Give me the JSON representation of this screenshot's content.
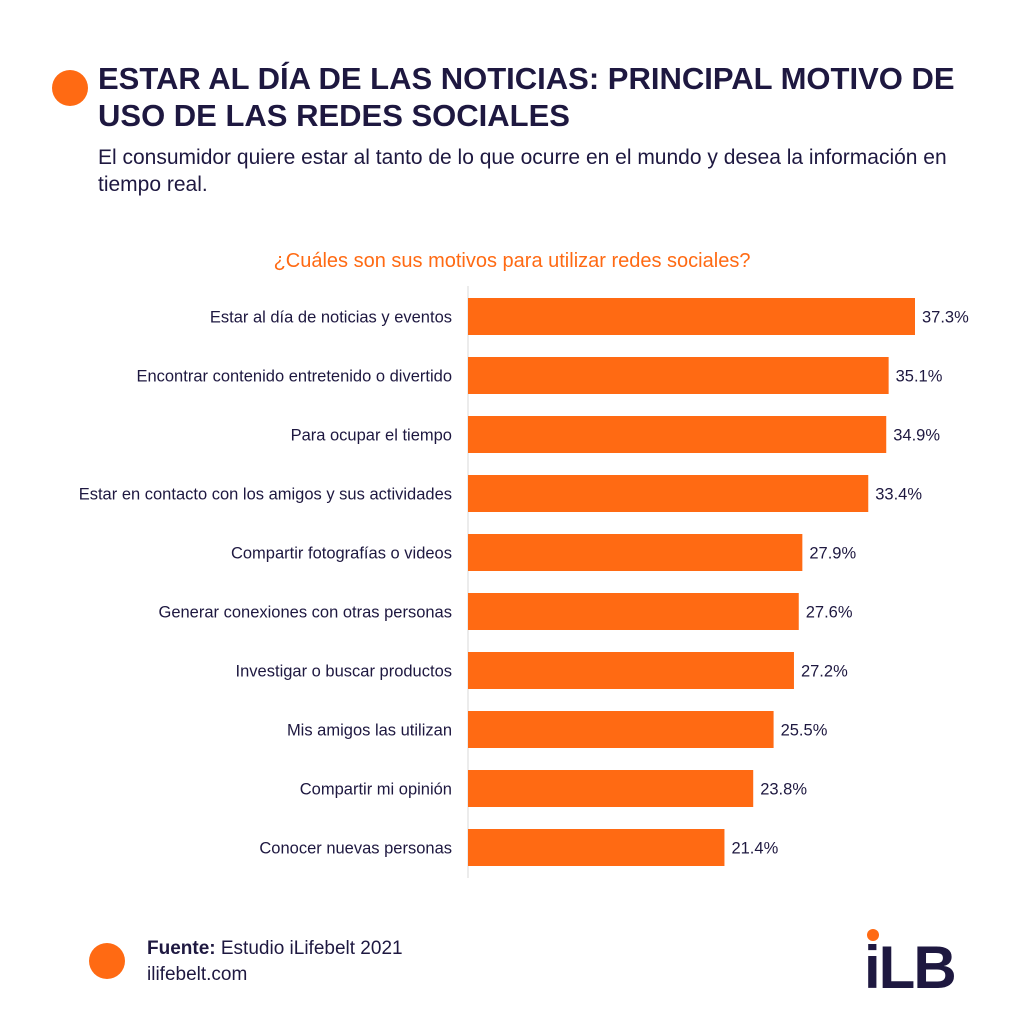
{
  "header": {
    "title": "ESTAR AL DÍA DE LAS NOTICIAS: PRINCIPAL MOTIVO DE USO DE LAS REDES SOCIALES",
    "subtitle": "El consumidor quiere estar al tanto de lo que ocurre en el mundo y desea la información en tiempo real."
  },
  "chart_data": {
    "type": "bar",
    "orientation": "horizontal",
    "title": "¿Cuáles son sus motivos para utilizar redes sociales?",
    "categories": [
      "Estar al día de noticias y eventos",
      "Encontrar contenido entretenido o divertido",
      "Para ocupar el tiempo",
      "Estar en contacto con los amigos y sus actividades",
      "Compartir fotografías o videos",
      "Generar conexiones con otras personas",
      "Investigar o buscar productos",
      "Mis amigos las utilizan",
      "Compartir mi opinión",
      "Conocer nuevas personas"
    ],
    "values": [
      37.3,
      35.1,
      34.9,
      33.4,
      27.9,
      27.6,
      27.2,
      25.5,
      23.8,
      21.4
    ],
    "value_labels": [
      "37.3%",
      "35.1%",
      "34.9%",
      "33.4%",
      "27.9%",
      "27.6%",
      "27.2%",
      "25.5%",
      "23.8%",
      "21.4%"
    ],
    "unit": "%",
    "xlim": [
      0,
      37.3
    ],
    "grid": false,
    "bar_color": "#ff6a13"
  },
  "footer": {
    "source_label": "Fuente:",
    "source_text": " Estudio iLifebelt 2021",
    "website": "ilifebelt.com",
    "logo_text": "iLB"
  },
  "colors": {
    "accent": "#ff6a13",
    "text": "#1e1840"
  }
}
